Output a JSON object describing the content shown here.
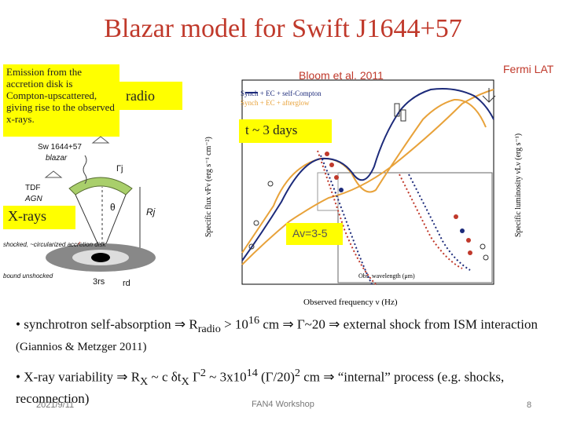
{
  "slide": {
    "title": "Blazar model for Swift J1644+57",
    "emission_note": "Emission from the accretion disk is Compton-upscattered, giving rise to the observed x-rays.",
    "radio_label": "radio",
    "xrays_label": "X-rays",
    "days_label": "t ~ 3 days",
    "av_label": "Av=3-5",
    "citation": "Bloom et al. 2011",
    "fermi_label": "Fermi LAT",
    "bullet1": "• synchrotron self-absorption ⇒ R",
    "bullet1_sub": "radio",
    "bullet1_rest": " > 10",
    "bullet1_sup": "16",
    "bullet1_end": " cm ⇒ Γ~20 ⇒ external shock from ISM interaction",
    "bullet1_ref": " (Giannios & Metzger 2011)",
    "bullet2_a": "• X-ray variability ⇒ R",
    "bullet2_sub1": "X",
    "bullet2_b": " ~ c δt",
    "bullet2_sub2": "X",
    "bullet2_c": " Γ",
    "bullet2_sup1": "2",
    "bullet2_d": " ~ 3x10",
    "bullet2_sup2": "14",
    "bullet2_e": " (Γ/20)",
    "bullet2_sup3": "2",
    "bullet2_f": " cm ⇒ “internal” process (e.g. shocks, reconnection)",
    "footer_date": "2021/9/11",
    "footer_event": "FAN4 Workshop",
    "page_number": "8"
  },
  "diagram": {
    "source_label": "Sw 1644+57",
    "blazar_label": "blazar",
    "gamma_label": "Γj",
    "tdf_label": "TDF",
    "agn_label": "AGN",
    "theta_label": "θ",
    "rj_label": "Rj",
    "shocked_label": "shocked, ~circularized accretion disk",
    "bound_label": "bound unshocked",
    "rs_label": "3rs",
    "rd_label": "rd"
  },
  "plot": {
    "legend1": "Synch + EC + self-Compton",
    "legend2": "Synch + EC + afterglow",
    "xlabel": "Observed frequency ν (Hz)",
    "ylabel_left": "Specific flux νFν (erg s⁻¹ cm⁻²)",
    "ylabel_right": "Specific luminosity νLν (erg s⁻¹)",
    "inset_xlabel": "Obs. wavelength (μm)",
    "colors": {
      "orange": "#e8a23a",
      "navy": "#1c2a7a",
      "red": "#c0392b"
    }
  }
}
